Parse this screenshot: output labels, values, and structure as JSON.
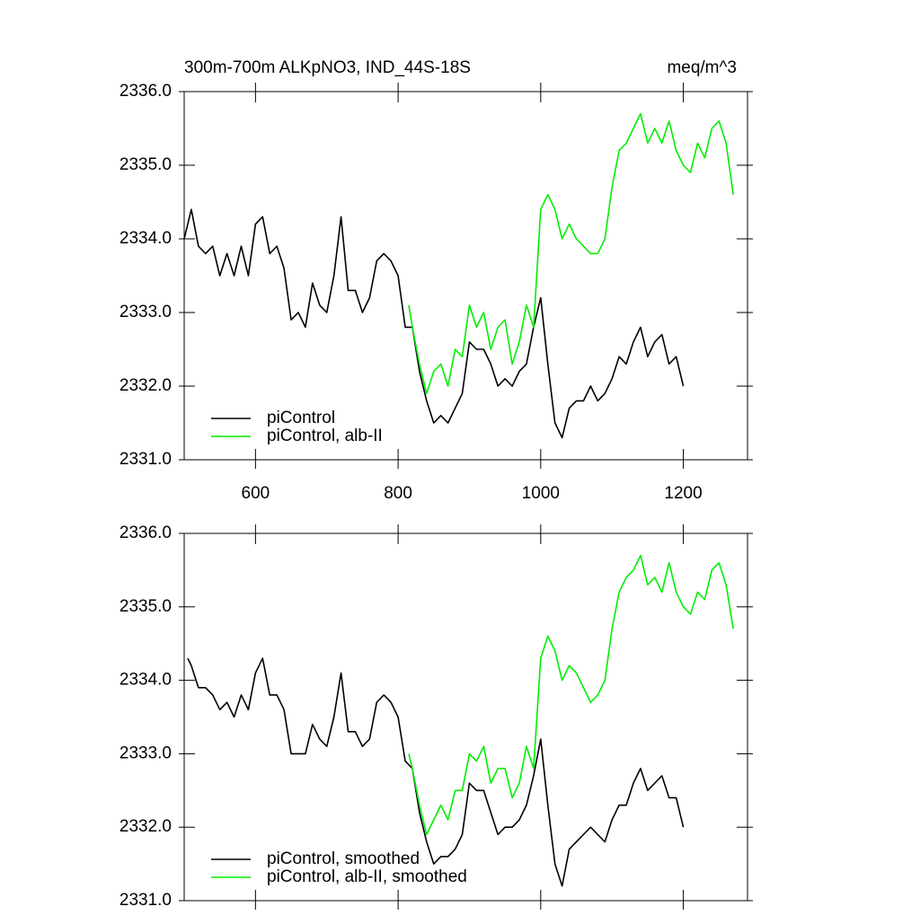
{
  "chart_data": [
    {
      "type": "line",
      "title": "300m-700m ALKpNO3, IND_44S-18S",
      "subtitle": "meq/m^3",
      "xlim": [
        500,
        1290
      ],
      "ylim": [
        2331,
        2336
      ],
      "xticks": [
        600,
        800,
        1000,
        1200
      ],
      "yticks": [
        {
          "value": 2331,
          "label": "2331.0"
        },
        {
          "value": 2332,
          "label": "2332.0"
        },
        {
          "value": 2333,
          "label": "2333.0"
        },
        {
          "value": 2334,
          "label": "2334.0"
        },
        {
          "value": 2335,
          "label": "2335.0"
        },
        {
          "value": 2336,
          "label": "2336.0"
        }
      ],
      "legend": "lower left",
      "series": [
        {
          "name": "piControl",
          "color": "#000000",
          "x": [
            500,
            510,
            520,
            530,
            540,
            550,
            560,
            570,
            580,
            590,
            600,
            610,
            620,
            630,
            640,
            650,
            660,
            670,
            680,
            690,
            700,
            710,
            720,
            730,
            740,
            750,
            760,
            770,
            780,
            790,
            800,
            810,
            820,
            830,
            840,
            850,
            860,
            870,
            880,
            890,
            900,
            910,
            920,
            930,
            940,
            950,
            960,
            970,
            980,
            990,
            1000,
            1010,
            1020,
            1030,
            1040,
            1050,
            1060,
            1070,
            1080,
            1090,
            1100,
            1110,
            1120,
            1130,
            1140,
            1150,
            1160,
            1170,
            1180,
            1190,
            1200
          ],
          "values": [
            2334.0,
            2334.4,
            2333.9,
            2333.8,
            2333.9,
            2333.5,
            2333.8,
            2333.5,
            2333.9,
            2333.5,
            2334.2,
            2334.3,
            2333.8,
            2333.9,
            2333.6,
            2332.9,
            2333.0,
            2332.8,
            2333.4,
            2333.1,
            2333.0,
            2333.5,
            2334.3,
            2333.3,
            2333.3,
            2333.0,
            2333.2,
            2333.7,
            2333.8,
            2333.7,
            2333.5,
            2332.8,
            2332.8,
            2332.2,
            2331.8,
            2331.5,
            2331.6,
            2331.5,
            2331.7,
            2331.9,
            2332.6,
            2332.5,
            2332.5,
            2332.3,
            2332.0,
            2332.1,
            2332.0,
            2332.2,
            2332.3,
            2332.8,
            2333.2,
            2332.3,
            2331.5,
            2331.3,
            2331.7,
            2331.8,
            2331.8,
            2332.0,
            2331.8,
            2331.9,
            2332.1,
            2332.4,
            2332.3,
            2332.6,
            2332.8,
            2332.4,
            2332.6,
            2332.7,
            2332.3,
            2332.4,
            2332.0
          ]
        },
        {
          "name": "piControl, alb-II",
          "color": "#00ee00",
          "x": [
            815,
            820,
            830,
            840,
            850,
            860,
            870,
            880,
            890,
            900,
            910,
            920,
            930,
            940,
            950,
            960,
            970,
            980,
            990,
            1000,
            1010,
            1020,
            1030,
            1040,
            1050,
            1060,
            1070,
            1080,
            1090,
            1100,
            1110,
            1120,
            1130,
            1140,
            1150,
            1160,
            1170,
            1180,
            1190,
            1200,
            1210,
            1220,
            1230,
            1240,
            1250,
            1260,
            1270
          ],
          "values": [
            2333.1,
            2332.8,
            2332.3,
            2331.9,
            2332.2,
            2332.3,
            2332.0,
            2332.5,
            2332.4,
            2333.1,
            2332.8,
            2333.0,
            2332.5,
            2332.8,
            2332.9,
            2332.3,
            2332.6,
            2333.1,
            2332.8,
            2334.4,
            2334.6,
            2334.4,
            2334.0,
            2334.2,
            2334.0,
            2333.9,
            2333.8,
            2333.8,
            2334.0,
            2334.7,
            2335.2,
            2335.3,
            2335.5,
            2335.7,
            2335.3,
            2335.5,
            2335.3,
            2335.6,
            2335.2,
            2335.0,
            2334.9,
            2335.3,
            2335.1,
            2335.5,
            2335.6,
            2335.3,
            2334.6
          ]
        }
      ]
    },
    {
      "type": "line",
      "xlim": [
        500,
        1290
      ],
      "ylim": [
        2331,
        2336
      ],
      "yticks": [
        {
          "value": 2331,
          "label": "2331.0"
        },
        {
          "value": 2332,
          "label": "2332.0"
        },
        {
          "value": 2333,
          "label": "2333.0"
        },
        {
          "value": 2334,
          "label": "2334.0"
        },
        {
          "value": 2335,
          "label": "2335.0"
        },
        {
          "value": 2336,
          "label": "2336.0"
        }
      ],
      "legend": "lower left",
      "series": [
        {
          "name": "piControl, smoothed",
          "color": "#000000",
          "x": [
            505,
            510,
            520,
            530,
            540,
            550,
            560,
            570,
            580,
            590,
            600,
            610,
            620,
            630,
            640,
            650,
            660,
            670,
            680,
            690,
            700,
            710,
            720,
            730,
            740,
            750,
            760,
            770,
            780,
            790,
            800,
            810,
            820,
            830,
            840,
            850,
            860,
            870,
            880,
            890,
            900,
            910,
            920,
            930,
            940,
            950,
            960,
            970,
            980,
            990,
            1000,
            1010,
            1020,
            1030,
            1040,
            1050,
            1060,
            1070,
            1080,
            1090,
            1100,
            1110,
            1120,
            1130,
            1140,
            1150,
            1160,
            1170,
            1180,
            1190,
            1200
          ],
          "values": [
            2334.3,
            2334.2,
            2333.9,
            2333.9,
            2333.8,
            2333.6,
            2333.7,
            2333.5,
            2333.8,
            2333.6,
            2334.1,
            2334.3,
            2333.8,
            2333.8,
            2333.6,
            2333.0,
            2333.0,
            2333.0,
            2333.4,
            2333.2,
            2333.1,
            2333.5,
            2334.1,
            2333.3,
            2333.3,
            2333.1,
            2333.2,
            2333.7,
            2333.8,
            2333.7,
            2333.5,
            2332.9,
            2332.8,
            2332.2,
            2331.8,
            2331.5,
            2331.6,
            2331.6,
            2331.7,
            2331.9,
            2332.6,
            2332.5,
            2332.5,
            2332.2,
            2331.9,
            2332.0,
            2332.0,
            2332.1,
            2332.3,
            2332.7,
            2333.2,
            2332.3,
            2331.5,
            2331.2,
            2331.7,
            2331.8,
            2331.9,
            2332.0,
            2331.9,
            2331.8,
            2332.1,
            2332.3,
            2332.3,
            2332.6,
            2332.8,
            2332.5,
            2332.6,
            2332.7,
            2332.4,
            2332.4,
            2332.0
          ]
        },
        {
          "name": "piControl, alb-II, smoothed",
          "color": "#00ee00",
          "x": [
            815,
            820,
            830,
            840,
            850,
            860,
            870,
            880,
            890,
            900,
            910,
            920,
            930,
            940,
            950,
            960,
            970,
            980,
            990,
            1000,
            1010,
            1020,
            1030,
            1040,
            1050,
            1060,
            1070,
            1080,
            1090,
            1100,
            1110,
            1120,
            1130,
            1140,
            1150,
            1160,
            1170,
            1180,
            1190,
            1200,
            1210,
            1220,
            1230,
            1240,
            1250,
            1260,
            1270
          ],
          "values": [
            2333.0,
            2332.8,
            2332.3,
            2331.9,
            2332.1,
            2332.3,
            2332.1,
            2332.5,
            2332.5,
            2333.0,
            2332.9,
            2333.1,
            2332.6,
            2332.8,
            2332.8,
            2332.4,
            2332.6,
            2333.1,
            2332.8,
            2334.3,
            2334.6,
            2334.4,
            2334.0,
            2334.2,
            2334.1,
            2333.9,
            2333.7,
            2333.8,
            2334.0,
            2334.7,
            2335.2,
            2335.4,
            2335.5,
            2335.7,
            2335.3,
            2335.4,
            2335.2,
            2335.6,
            2335.2,
            2335.0,
            2334.9,
            2335.2,
            2335.1,
            2335.5,
            2335.6,
            2335.3,
            2334.7
          ]
        }
      ]
    }
  ]
}
